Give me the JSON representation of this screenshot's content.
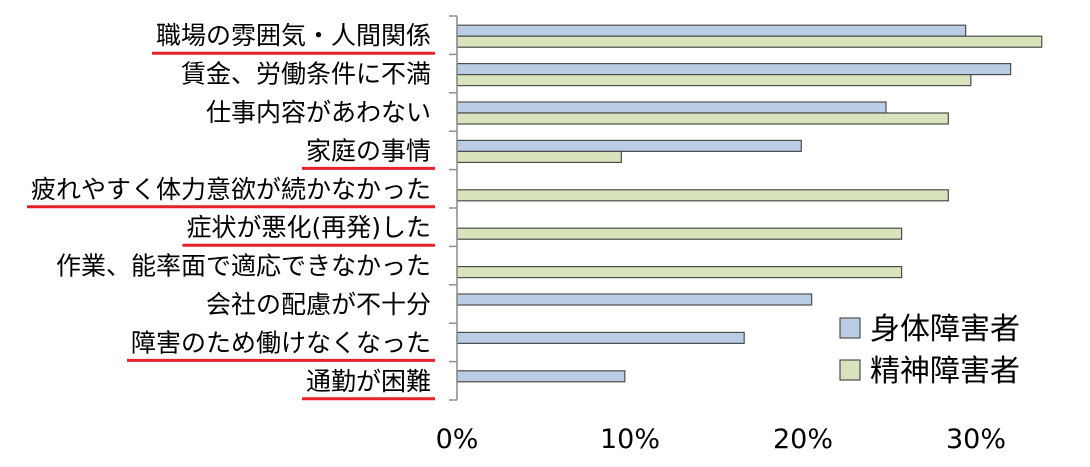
{
  "chart_data": {
    "type": "bar",
    "orientation": "horizontal",
    "categories": [
      "職場の雰囲気・人間関係",
      "賃金、労働条件に不満",
      "仕事内容があわない",
      "家庭の事情",
      "疲れやすく体力意欲が続かなかった",
      "症状が悪化(再発)した",
      "作業、能率面で適応できなかった",
      "会社の配慮が不十分",
      "障害のため働けなくなった",
      "通勤が困難"
    ],
    "highlighted": [
      true,
      false,
      false,
      true,
      true,
      true,
      false,
      false,
      true,
      true
    ],
    "series": [
      {
        "name": "身体障害者",
        "color": "#b9cde5",
        "values": [
          29.4,
          32.0,
          24.8,
          19.9,
          0,
          0,
          0,
          20.5,
          16.6,
          9.7
        ]
      },
      {
        "name": "精神障害者",
        "color": "#d7e4bd",
        "values": [
          33.8,
          29.7,
          28.4,
          9.5,
          28.4,
          25.7,
          25.7,
          0,
          0,
          0
        ]
      }
    ],
    "xlim": [
      0,
      35
    ],
    "xticks": [
      0,
      10,
      20,
      30
    ],
    "xtick_labels": [
      "0%",
      "10%",
      "20%",
      "30%"
    ],
    "highlight_color": "#e8202a",
    "legend": "bottom-right"
  }
}
